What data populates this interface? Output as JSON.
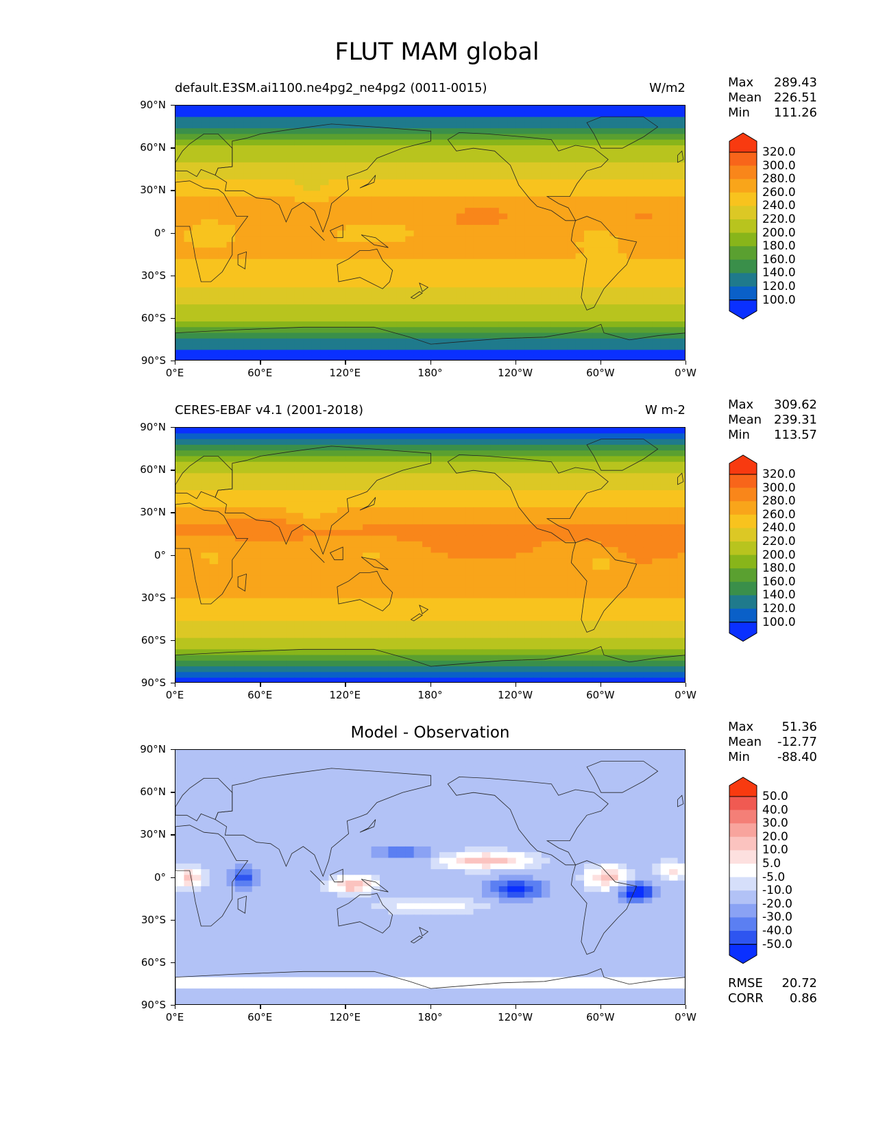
{
  "title": "FLUT MAM global",
  "lat_ticks": [
    "90°N",
    "60°N",
    "30°N",
    "0°",
    "30°S",
    "60°S",
    "90°S"
  ],
  "lon_ticks": [
    "0°E",
    "60°E",
    "120°E",
    "180°",
    "120°W",
    "60°W",
    "0°W"
  ],
  "panels": [
    {
      "left_title": "default.E3SM.ai1100.ne4pg2_ne4pg2 (0011-0015)",
      "right_title": "W/m2",
      "stats": [
        [
          "Max",
          "289.43"
        ],
        [
          "Mean",
          "226.51"
        ],
        [
          "Min",
          "111.26"
        ]
      ],
      "cbar_labels": [
        "320.0",
        "300.0",
        "280.0",
        "260.0",
        "240.0",
        "220.0",
        "200.0",
        "180.0",
        "160.0",
        "140.0",
        "120.0",
        "100.0"
      ]
    },
    {
      "left_title": "CERES-EBAF v4.1 (2001-2018)",
      "right_title": "W m-2",
      "stats": [
        [
          "Max",
          "309.62"
        ],
        [
          "Mean",
          "239.31"
        ],
        [
          "Min",
          "113.57"
        ]
      ],
      "cbar_labels": [
        "320.0",
        "300.0",
        "280.0",
        "260.0",
        "240.0",
        "220.0",
        "200.0",
        "180.0",
        "160.0",
        "140.0",
        "120.0",
        "100.0"
      ]
    },
    {
      "center_title": "Model - Observation",
      "stats": [
        [
          "Max",
          "51.36"
        ],
        [
          "Mean",
          "-12.77"
        ],
        [
          "Min",
          "-88.40"
        ]
      ],
      "cbar_labels": [
        "50.0",
        "40.0",
        "30.0",
        "20.0",
        "10.0",
        "5.0",
        "-5.0",
        "-10.0",
        "-20.0",
        "-30.0",
        "-40.0",
        "-50.0"
      ],
      "extra_stats": [
        [
          "RMSE",
          "20.72"
        ],
        [
          "CORR",
          "0.86"
        ]
      ]
    }
  ],
  "colors": {
    "abs_scale": [
      "#0a30ff",
      "#0a60c8",
      "#1f7a8c",
      "#3a8f4a",
      "#5aa030",
      "#88b51a",
      "#b8c41e",
      "#dcc825",
      "#f8c31e",
      "#f9a51a",
      "#f9861a",
      "#f8651a",
      "#f83a10"
    ],
    "diff_scale": [
      "#0a30ff",
      "#2e55f0",
      "#5b7ff2",
      "#8aa2f4",
      "#b2c2f6",
      "#d6dffa",
      "#ffffff",
      "#fde0df",
      "#fbc3bf",
      "#f8a49d",
      "#f47f77",
      "#f05a52",
      "#f83a10"
    ]
  }
}
